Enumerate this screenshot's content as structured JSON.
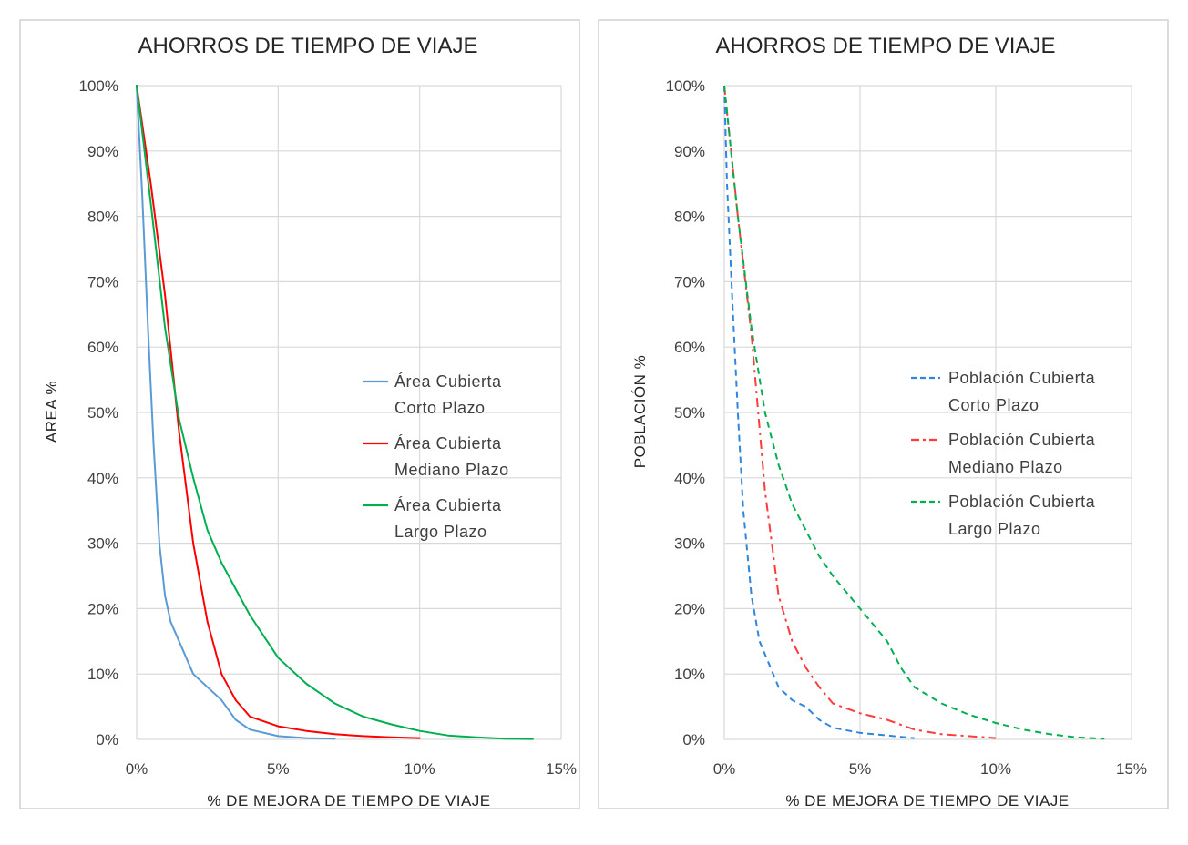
{
  "chart_data": [
    {
      "type": "line",
      "title": "AHORROS DE TIEMPO DE VIAJE",
      "xlabel": "% DE MEJORA DE TIEMPO DE VIAJE",
      "ylabel": "AREA %",
      "xlim": [
        0,
        15
      ],
      "ylim": [
        0,
        100
      ],
      "x_ticks": [
        "0%",
        "5%",
        "10%",
        "15%"
      ],
      "y_ticks": [
        "0%",
        "10%",
        "20%",
        "30%",
        "40%",
        "50%",
        "60%",
        "70%",
        "80%",
        "90%",
        "100%"
      ],
      "grid": true,
      "legend_position": "right",
      "series": [
        {
          "name_lines": [
            "Área Cubierta",
            "Corto Plazo"
          ],
          "color": "#5b9bd5",
          "style": "solid",
          "x": [
            0,
            0.2,
            0.4,
            0.6,
            0.8,
            1.0,
            1.2,
            1.5,
            2.0,
            2.5,
            3.0,
            3.5,
            4.0,
            5.0,
            6.0,
            7.0
          ],
          "y": [
            100,
            83,
            63,
            45,
            30,
            22,
            18,
            15,
            10,
            8,
            6,
            3,
            1.5,
            0.5,
            0.2,
            0.1
          ]
        },
        {
          "name_lines": [
            "Área Cubierta",
            "Mediano Plazo"
          ],
          "color": "#ff0000",
          "style": "solid",
          "x": [
            0,
            0.5,
            1.0,
            1.5,
            2.0,
            2.5,
            3.0,
            3.5,
            4.0,
            5.0,
            6.0,
            7.0,
            8.0,
            9.0,
            10.0
          ],
          "y": [
            100,
            85,
            68,
            47,
            30,
            18,
            10,
            6,
            3.5,
            2,
            1.3,
            0.8,
            0.5,
            0.3,
            0.2
          ]
        },
        {
          "name_lines": [
            "Área Cubierta",
            "Largo Plazo"
          ],
          "color": "#00b050",
          "style": "solid",
          "x": [
            0,
            0.5,
            1.0,
            1.5,
            2.0,
            2.5,
            3.0,
            3.5,
            4.0,
            5.0,
            6.0,
            7.0,
            8.0,
            9.0,
            10.0,
            11.0,
            12.0,
            13.0,
            14.0
          ],
          "y": [
            100,
            82,
            63,
            49,
            40,
            32,
            27,
            23,
            19,
            12.5,
            8.5,
            5.5,
            3.5,
            2.3,
            1.3,
            0.6,
            0.3,
            0.1,
            0.05
          ]
        }
      ]
    },
    {
      "type": "line",
      "title": "AHORROS DE TIEMPO DE VIAJE",
      "xlabel": "% DE MEJORA DE TIEMPO DE VIAJE",
      "ylabel": "POBLACIÓN %",
      "xlim": [
        0,
        15
      ],
      "ylim": [
        0,
        100
      ],
      "x_ticks": [
        "0%",
        "5%",
        "10%",
        "15%"
      ],
      "y_ticks": [
        "0%",
        "10%",
        "20%",
        "30%",
        "40%",
        "50%",
        "60%",
        "70%",
        "80%",
        "90%",
        "100%"
      ],
      "grid": true,
      "legend_position": "right",
      "series": [
        {
          "name_lines": [
            "Población Cubierta",
            "Corto Plazo"
          ],
          "color": "#2e86de",
          "style": "dashed",
          "x": [
            0,
            0.1,
            0.3,
            0.5,
            0.7,
            1.0,
            1.3,
            1.7,
            2.0,
            2.5,
            3.0,
            3.5,
            4.0,
            5.0,
            6.0,
            7.0
          ],
          "y": [
            100,
            85,
            67,
            50,
            35,
            22,
            15,
            11,
            8,
            6,
            5,
            3,
            1.8,
            1.0,
            0.6,
            0.2
          ]
        },
        {
          "name_lines": [
            "Población Cubierta",
            "Mediano Plazo"
          ],
          "color": "#ff3b3b",
          "style": "dashdot",
          "x": [
            0,
            0.5,
            1.0,
            1.5,
            2.0,
            2.5,
            3.0,
            3.5,
            4.0,
            5.0,
            6.0,
            7.0,
            8.0,
            9.0,
            10.0
          ],
          "y": [
            100,
            80,
            62,
            38,
            22,
            15,
            11,
            8,
            5.5,
            4,
            3,
            1.5,
            0.8,
            0.5,
            0.2
          ]
        },
        {
          "name_lines": [
            "Población Cubierta",
            "Largo Plazo"
          ],
          "color": "#00b050",
          "style": "dashed",
          "x": [
            0,
            0.5,
            1.0,
            1.5,
            2.0,
            2.5,
            3.0,
            3.5,
            4.0,
            5.0,
            6.0,
            6.5,
            7.0,
            8.0,
            9.0,
            10.0,
            11.0,
            12.0,
            13.0,
            14.0
          ],
          "y": [
            100,
            80,
            63,
            50,
            42,
            36,
            32,
            28,
            25,
            20,
            15,
            11,
            8,
            5.5,
            3.8,
            2.5,
            1.5,
            0.8,
            0.3,
            0.1
          ]
        }
      ]
    }
  ]
}
